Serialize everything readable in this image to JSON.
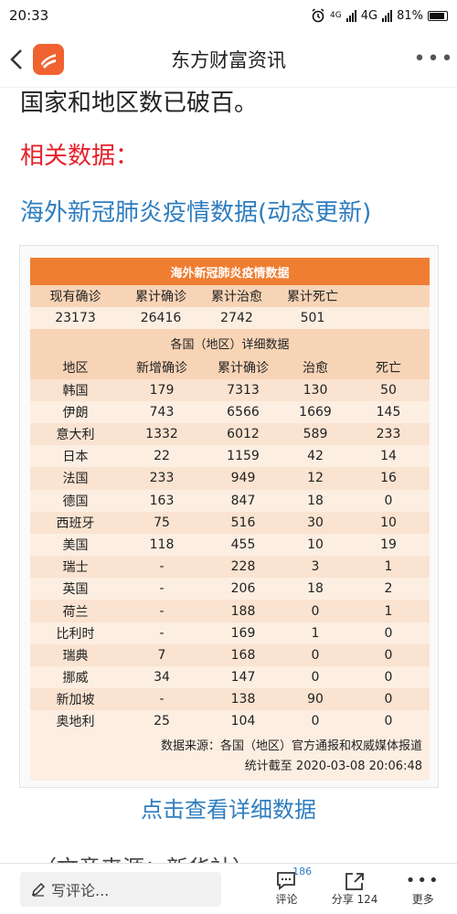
{
  "status": {
    "time": "20:33",
    "net1": "4G",
    "net2": "4G",
    "battery": "81%"
  },
  "header": {
    "title": "东方财富资讯"
  },
  "article": {
    "paragraph_tail": "国家和地区数已破百。",
    "related_label": "相关数据：",
    "headline": "海外新冠肺炎疫情数据(动态更新)"
  },
  "table": {
    "title": "海外新冠肺炎疫情数据",
    "summary_headers": [
      "现有确诊",
      "累计确诊",
      "累计治愈",
      "累计死亡"
    ],
    "summary_values": [
      "23173",
      "26416",
      "2742",
      "501"
    ],
    "section_label": "各国（地区）详细数据",
    "columns": [
      "地区",
      "新增确诊",
      "累计确诊",
      "治愈",
      "死亡"
    ],
    "rows": [
      [
        "韩国",
        "179",
        "7313",
        "130",
        "50"
      ],
      [
        "伊朗",
        "743",
        "6566",
        "1669",
        "145"
      ],
      [
        "意大利",
        "1332",
        "6012",
        "589",
        "233"
      ],
      [
        "日本",
        "22",
        "1159",
        "42",
        "14"
      ],
      [
        "法国",
        "233",
        "949",
        "12",
        "16"
      ],
      [
        "德国",
        "163",
        "847",
        "18",
        "0"
      ],
      [
        "西班牙",
        "75",
        "516",
        "30",
        "10"
      ],
      [
        "美国",
        "118",
        "455",
        "10",
        "19"
      ],
      [
        "瑞士",
        "-",
        "228",
        "3",
        "1"
      ],
      [
        "英国",
        "-",
        "206",
        "18",
        "2"
      ],
      [
        "荷兰",
        "-",
        "188",
        "0",
        "1"
      ],
      [
        "比利时",
        "-",
        "169",
        "1",
        "0"
      ],
      [
        "瑞典",
        "7",
        "168",
        "0",
        "0"
      ],
      [
        "挪威",
        "34",
        "147",
        "0",
        "0"
      ],
      [
        "新加坡",
        "-",
        "138",
        "90",
        "0"
      ],
      [
        "奥地利",
        "25",
        "104",
        "0",
        "0"
      ]
    ],
    "source_note": "数据来源：各国（地区）官方通报和权威媒体报道",
    "updated_note": "统计截至 2020-03-08  20:06:48"
  },
  "link_text": "点击查看详细数据",
  "source_line": "（文章来源：新华社）",
  "bottombar": {
    "comment_placeholder": "写评论...",
    "comment_label": "评论",
    "comment_count": "186",
    "share_label": "分享 124",
    "more_label": "更多"
  }
}
